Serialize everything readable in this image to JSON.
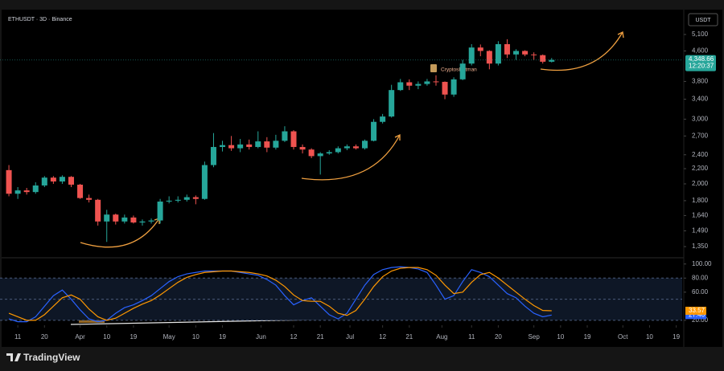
{
  "header": {
    "symbol": "ETHUSDT · 3D · Binance",
    "currency": "USDT",
    "logo": "TradingView"
  },
  "chart_data": [
    {
      "type": "candlestick",
      "annotation": "CryptosBatman",
      "log_scale": true,
      "grid": false,
      "up_color": "#26a69a",
      "down_color": "#ef5350",
      "x": [
        67,
        70,
        73,
        76,
        79,
        82,
        85,
        88,
        91,
        94,
        97,
        100,
        103,
        106,
        109,
        112,
        115,
        118,
        121,
        124,
        127,
        130,
        133,
        136,
        139,
        142,
        145,
        148,
        151,
        154,
        157,
        160,
        163,
        166,
        169,
        172,
        175,
        178,
        181,
        184,
        187,
        190,
        193,
        196,
        199,
        202,
        205,
        208,
        211,
        214,
        217,
        220,
        223,
        226,
        229,
        232,
        235,
        238,
        241,
        244,
        247,
        250
      ],
      "open": [
        2180,
        1880,
        1920,
        1900,
        1980,
        2080,
        2030,
        2090,
        1990,
        1830,
        1810,
        1580,
        1650,
        1580,
        1620,
        1570,
        1580,
        1590,
        1790,
        1800,
        1810,
        1840,
        1820,
        2250,
        2520,
        2550,
        2500,
        2560,
        2520,
        2610,
        2510,
        2620,
        2780,
        2520,
        2480,
        2380,
        2420,
        2440,
        2500,
        2530,
        2500,
        2620,
        2950,
        3050,
        3600,
        3780,
        3700,
        3740,
        3800,
        3790,
        3500,
        3850,
        4250,
        4700,
        4600,
        4250,
        4800,
        4500,
        4600,
        4500,
        4480,
        4300
      ],
      "high": [
        2250,
        1960,
        1950,
        2020,
        2100,
        2100,
        2110,
        2100,
        2000,
        1870,
        1820,
        1700,
        1660,
        1650,
        1640,
        1600,
        1610,
        1820,
        1850,
        1850,
        1870,
        1860,
        2300,
        2750,
        2620,
        2700,
        2650,
        2640,
        2780,
        2680,
        2720,
        2870,
        2800,
        2560,
        2500,
        2440,
        2470,
        2530,
        2560,
        2560,
        2640,
        3000,
        3100,
        3720,
        3860,
        3850,
        3800,
        3860,
        3950,
        3800,
        3900,
        4350,
        4800,
        4790,
        4620,
        4890,
        4950,
        4650,
        4620,
        4560,
        4500,
        4400
      ],
      "low": [
        1850,
        1820,
        1870,
        1880,
        1960,
        2000,
        2000,
        1960,
        1820,
        1780,
        1540,
        1390,
        1550,
        1560,
        1560,
        1540,
        1560,
        1560,
        1770,
        1780,
        1790,
        1760,
        1810,
        2220,
        2450,
        2460,
        2440,
        2480,
        2500,
        2440,
        2480,
        2600,
        2480,
        2420,
        2350,
        2120,
        2400,
        2420,
        2470,
        2480,
        2480,
        2610,
        2920,
        3030,
        3580,
        3600,
        3620,
        3700,
        3700,
        3400,
        3450,
        3830,
        4200,
        4450,
        4100,
        4200,
        4400,
        4350,
        4450,
        4350,
        4250,
        4280
      ],
      "close": [
        1880,
        1920,
        1900,
        1980,
        2080,
        2030,
        2090,
        1990,
        1830,
        1810,
        1580,
        1650,
        1580,
        1620,
        1570,
        1580,
        1590,
        1790,
        1800,
        1810,
        1840,
        1820,
        2250,
        2520,
        2550,
        2500,
        2560,
        2520,
        2610,
        2510,
        2620,
        2780,
        2520,
        2480,
        2380,
        2420,
        2440,
        2500,
        2530,
        2500,
        2620,
        2950,
        3050,
        3600,
        3780,
        3700,
        3740,
        3800,
        3790,
        3500,
        3850,
        4250,
        4700,
        4600,
        4250,
        4800,
        4500,
        4600,
        4500,
        4480,
        4300,
        4348.66
      ],
      "last_price": {
        "value": 4348.66,
        "label": "4,348.66"
      },
      "countdown": "12:20:37",
      "xlim": [
        64,
        294
      ],
      "xticks": [
        {
          "value": 70,
          "label": "11"
        },
        {
          "value": 79,
          "label": "20"
        },
        {
          "value": 91,
          "label": "Apr"
        },
        {
          "value": 100,
          "label": "10"
        },
        {
          "value": 109,
          "label": "19"
        },
        {
          "value": 121,
          "label": "May"
        },
        {
          "value": 130,
          "label": "10"
        },
        {
          "value": 139,
          "label": "19"
        },
        {
          "value": 152,
          "label": "Jun"
        },
        {
          "value": 163,
          "label": "12"
        },
        {
          "value": 172,
          "label": "21"
        },
        {
          "value": 182,
          "label": "Jul"
        },
        {
          "value": 193,
          "label": "12"
        },
        {
          "value": 202,
          "label": "21"
        },
        {
          "value": 213,
          "label": "Aug"
        },
        {
          "value": 223,
          "label": "11"
        },
        {
          "value": 232,
          "label": "20"
        },
        {
          "value": 244,
          "label": "Sep"
        },
        {
          "value": 253,
          "label": "10"
        },
        {
          "value": 262,
          "label": "19"
        },
        {
          "value": 274,
          "label": "Oct"
        },
        {
          "value": 283,
          "label": "10"
        },
        {
          "value": 292,
          "label": "19"
        }
      ],
      "ylim": [
        1265,
        5870
      ],
      "yticks": [
        {
          "value": 1350,
          "label": "1,350"
        },
        {
          "value": 1490,
          "label": "1,490"
        },
        {
          "value": 1640,
          "label": "1,640"
        },
        {
          "value": 1800,
          "label": "1,800"
        },
        {
          "value": 2000,
          "label": "2,000"
        },
        {
          "value": 2200,
          "label": "2,200"
        },
        {
          "value": 2400,
          "label": "2,400"
        },
        {
          "value": 2700,
          "label": "2,700"
        },
        {
          "value": 3000,
          "label": "3,000"
        },
        {
          "value": 3400,
          "label": "3,400"
        },
        {
          "value": 3800,
          "label": "3,800"
        },
        {
          "value": 4600,
          "label": "4,600"
        },
        {
          "value": 5100,
          "label": "5,100"
        }
      ]
    },
    {
      "type": "line",
      "ylim": [
        13,
        110
      ],
      "yticks": [
        {
          "value": 20,
          "label": "20.00"
        },
        {
          "value": 60,
          "label": "60.00"
        },
        {
          "value": 80,
          "label": "80.00"
        },
        {
          "value": 100,
          "label": "100.00"
        }
      ],
      "levels": [
        80,
        50,
        20
      ],
      "series": [
        {
          "name": "K",
          "color": "#2962ff",
          "values": [
            22,
            18,
            18,
            25,
            40,
            55,
            63,
            50,
            35,
            22,
            18,
            20,
            30,
            38,
            42,
            48,
            55,
            65,
            75,
            82,
            86,
            88,
            90,
            90,
            90,
            90,
            88,
            86,
            84,
            78,
            70,
            55,
            42,
            48,
            52,
            40,
            28,
            22,
            30,
            50,
            70,
            85,
            92,
            95,
            96,
            95,
            93,
            88,
            70,
            50,
            55,
            75,
            92,
            88,
            82,
            70,
            58,
            52,
            40,
            30,
            25,
            27.46
          ]
        },
        {
          "name": "D",
          "color": "#ff9800",
          "values": [
            30,
            25,
            20,
            20,
            28,
            40,
            52,
            56,
            50,
            36,
            25,
            20,
            23,
            30,
            37,
            43,
            48,
            56,
            65,
            74,
            81,
            85,
            88,
            89,
            90,
            90,
            89,
            88,
            86,
            83,
            77,
            68,
            56,
            48,
            47,
            47,
            40,
            30,
            27,
            34,
            50,
            68,
            82,
            90,
            94,
            95,
            95,
            92,
            84,
            70,
            58,
            60,
            74,
            85,
            88,
            80,
            70,
            60,
            50,
            41,
            34,
            33.57
          ]
        }
      ]
    }
  ]
}
